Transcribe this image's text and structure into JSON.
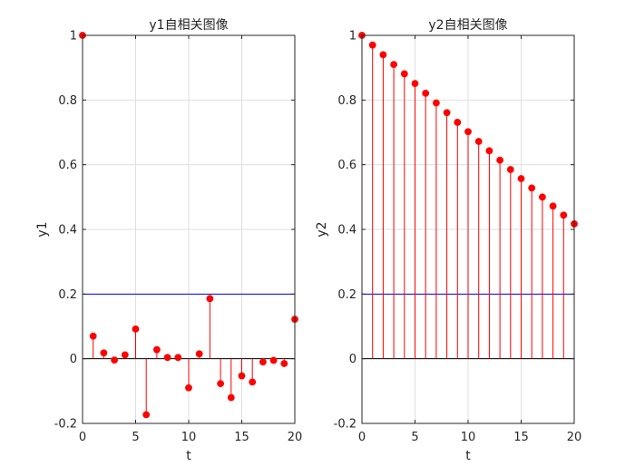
{
  "chart_data": [
    {
      "type": "stem",
      "title": "y1自相关图像",
      "xlabel": "t",
      "ylabel": "y1",
      "xlim": [
        0,
        20
      ],
      "ylim": [
        -0.2,
        1
      ],
      "xticks": [
        "0",
        "5",
        "10",
        "15",
        "20"
      ],
      "yticks": [
        "-0.2",
        "0",
        "0.2",
        "0.4",
        "0.6",
        "0.8",
        "1"
      ],
      "grid": true,
      "x": [
        0,
        1,
        2,
        3,
        4,
        5,
        6,
        7,
        8,
        9,
        10,
        11,
        12,
        13,
        14,
        15,
        16,
        17,
        18,
        19,
        20
      ],
      "y": [
        1.0,
        0.07,
        0.018,
        -0.004,
        0.012,
        0.092,
        -0.173,
        0.028,
        0.004,
        0.004,
        -0.09,
        0.015,
        0.186,
        -0.077,
        -0.12,
        -0.053,
        -0.072,
        -0.01,
        -0.005,
        -0.015,
        0.122
      ],
      "confidence_bounds": [
        0.2,
        -0.2
      ],
      "stem_color": "#ff0000",
      "bound_color": "#0000ff"
    },
    {
      "type": "stem",
      "title": "y2自相关图像",
      "xlabel": "t",
      "ylabel": "y2",
      "xlim": [
        0,
        20
      ],
      "ylim": [
        -0.2,
        1
      ],
      "xticks": [
        "0",
        "5",
        "10",
        "15",
        "20"
      ],
      "yticks": [
        "-0.2",
        "0",
        "0.2",
        "0.4",
        "0.6",
        "0.8",
        "1"
      ],
      "grid": true,
      "x": [
        0,
        1,
        2,
        3,
        4,
        5,
        6,
        7,
        8,
        9,
        10,
        11,
        12,
        13,
        14,
        15,
        16,
        17,
        18,
        19,
        20
      ],
      "y": [
        1.0,
        0.97,
        0.94,
        0.91,
        0.881,
        0.851,
        0.821,
        0.791,
        0.761,
        0.731,
        0.702,
        0.672,
        0.643,
        0.614,
        0.585,
        0.557,
        0.528,
        0.5,
        0.472,
        0.444,
        0.417
      ],
      "confidence_bounds": [
        0.2,
        -0.2
      ],
      "stem_color": "#ff0000",
      "bound_color": "#0000ff"
    }
  ]
}
